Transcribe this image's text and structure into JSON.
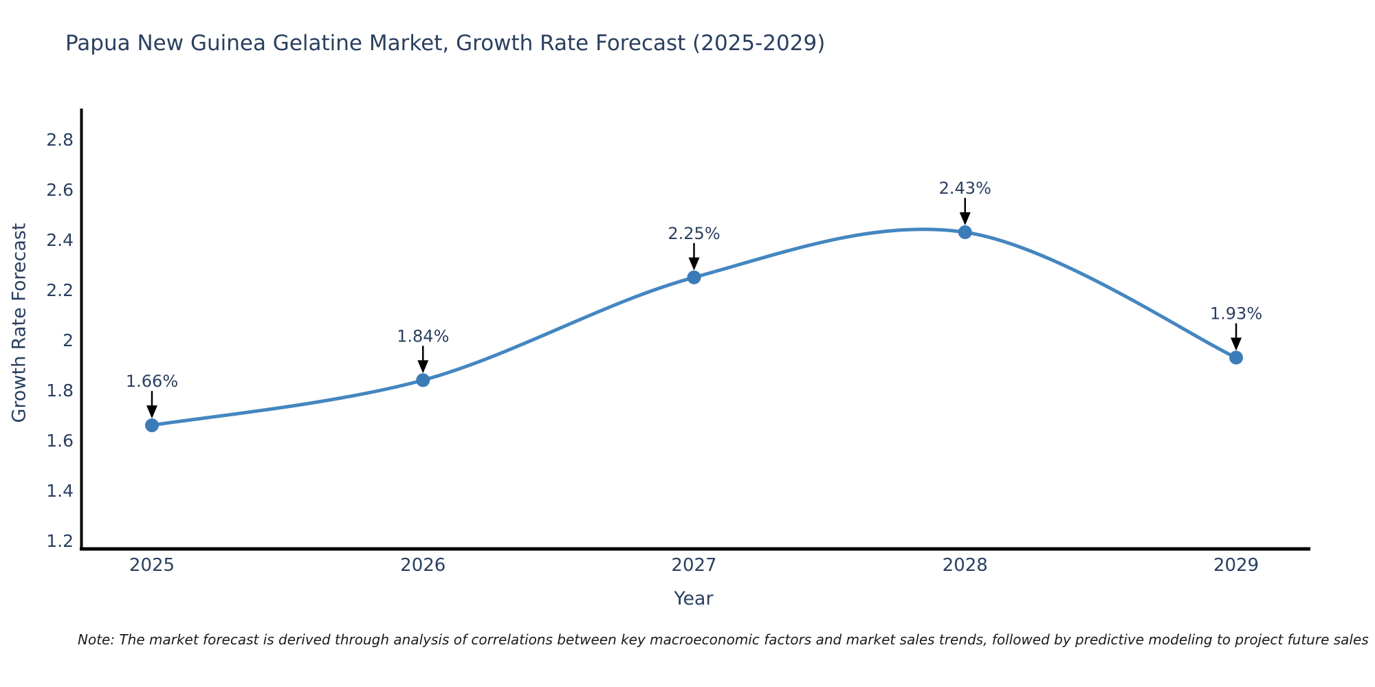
{
  "title": "Papua New Guinea Gelatine Market, Growth Rate Forecast (2025-2029)",
  "note": "Note: The market forecast is derived through analysis of correlations between key macroeconomic factors and market sales trends, followed by predictive modeling to project future sales",
  "colors": {
    "text": "#2a3f5f",
    "axis_line": "#000000",
    "series_line": "#4486c0",
    "marker": "#3b7bb8",
    "annotation_arrow": "#000000",
    "note_text": "#1a1a1a",
    "background": "#ffffff"
  },
  "chart_data": {
    "type": "line",
    "line_shape": "spline",
    "title": "Papua New Guinea Gelatine Market, Growth Rate Forecast (2025-2029)",
    "xlabel": "Year",
    "ylabel": "Growth Rate Forecast",
    "categories": [
      "2025",
      "2026",
      "2027",
      "2028",
      "2029"
    ],
    "series": [
      {
        "name": "Growth Rate Forecast",
        "values": [
          1.66,
          1.84,
          2.25,
          2.43,
          1.93
        ],
        "point_labels": [
          "1.66%",
          "1.84%",
          "2.25%",
          "2.43%",
          "1.93%"
        ]
      }
    ],
    "ytick_values": [
      1.2,
      1.4,
      1.6,
      1.8,
      2.0,
      2.2,
      2.4,
      2.6,
      2.8
    ],
    "ytick_labels": [
      "1.2",
      "1.4",
      "1.6",
      "1.8",
      "2",
      "2.2",
      "2.4",
      "2.6",
      "2.8"
    ],
    "ylim": [
      1.16,
      2.92
    ],
    "grid": false,
    "legend_position": "none",
    "markers": true,
    "annotations_have_arrows": true
  }
}
